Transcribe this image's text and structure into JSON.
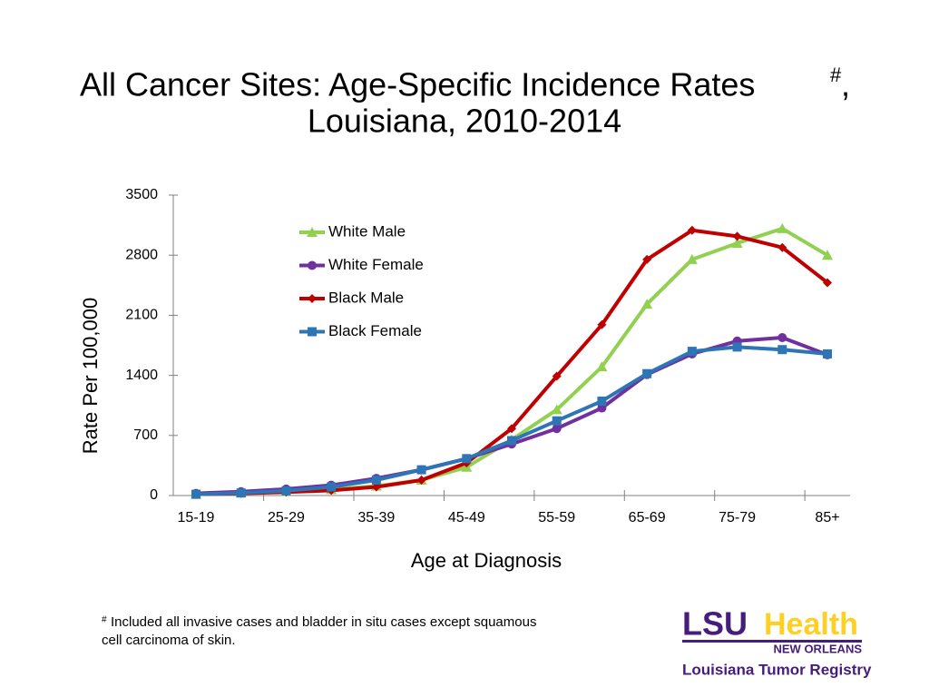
{
  "chart_data": {
    "type": "line",
    "title_line1": "All Cancer Sites: Age-Specific Incidence Rates",
    "title_sup": "#",
    "title_comma": ",",
    "title_line2": "Louisiana, 2010-2014",
    "x_label": "Age at Diagnosis",
    "y_label": "Rate Per 100,000",
    "categories": [
      "15-19",
      null,
      "25-29",
      null,
      "35-39",
      null,
      "45-49",
      null,
      "55-59",
      null,
      "65-69",
      null,
      "75-79",
      null,
      "85+"
    ],
    "ylim": [
      0,
      3500
    ],
    "yticks": [
      0,
      700,
      1400,
      2100,
      2800,
      3500
    ],
    "series": [
      {
        "name": "White Male",
        "color": "#92d050",
        "marker": "triangle",
        "values": [
          15,
          30,
          50,
          70,
          110,
          180,
          330,
          650,
          1000,
          1500,
          2230,
          2750,
          2940,
          3110,
          2800
        ]
      },
      {
        "name": "White Female",
        "color": "#7030a0",
        "marker": "circle",
        "values": [
          25,
          45,
          75,
          120,
          200,
          300,
          430,
          600,
          780,
          1020,
          1410,
          1650,
          1800,
          1840,
          1640
        ]
      },
      {
        "name": "Black Male",
        "color": "#c00000",
        "marker": "diamond",
        "values": [
          15,
          25,
          40,
          60,
          100,
          180,
          380,
          780,
          1390,
          1990,
          2750,
          3090,
          3020,
          2890,
          2480
        ]
      },
      {
        "name": "Black Female",
        "color": "#2e75b6",
        "marker": "square",
        "values": [
          15,
          30,
          55,
          100,
          180,
          300,
          430,
          640,
          870,
          1100,
          1420,
          1680,
          1730,
          1700,
          1650
        ]
      }
    ],
    "footnote_mark": "#",
    "footnote_line1": "Included all invasive cases and bladder in situ cases except squamous",
    "footnote_line2": "cell carcinoma of skin.",
    "logo_lsu": "LSU",
    "logo_health": "Health",
    "logo_city": "NEW ORLEANS",
    "logo_registry": "Louisiana Tumor Registry"
  }
}
